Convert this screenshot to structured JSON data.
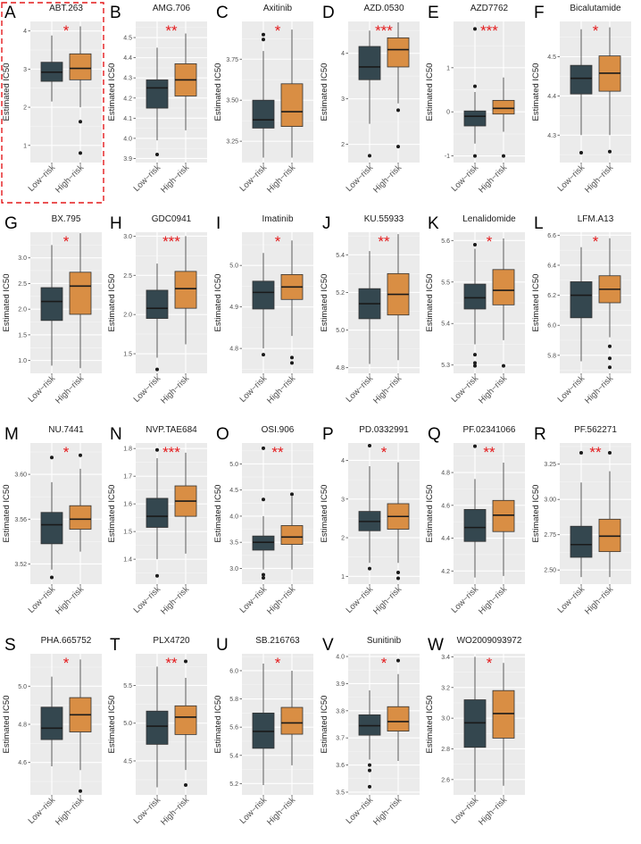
{
  "figure": {
    "x_categories": [
      "Low−risk",
      "High−risk"
    ],
    "ylabel": "Estimated IC50",
    "colors": {
      "low_risk": "#34474f",
      "high_risk": "#d98e44",
      "significance": "#e41a1c",
      "highlight": "#e41a1c"
    }
  },
  "chart_data": [
    {
      "letter": "A",
      "title": "ABT.263",
      "type": "box",
      "ylim": [
        0.55,
        4.25
      ],
      "yticks": [
        1,
        2,
        3,
        4
      ],
      "sig": "*",
      "highlighted": true,
      "series": [
        {
          "name": "Low−risk",
          "q1": 2.68,
          "median": 2.92,
          "q3": 3.18,
          "whisker_low": 2.15,
          "whisker_high": 3.88,
          "outliers": []
        },
        {
          "name": "High−risk",
          "q1": 2.72,
          "median": 3.02,
          "q3": 3.4,
          "whisker_low": 2.0,
          "whisker_high": 4.12,
          "outliers": [
            1.62,
            0.8
          ]
        }
      ]
    },
    {
      "letter": "B",
      "title": "AMG.706",
      "type": "box",
      "ylim": [
        3.88,
        4.58
      ],
      "yticks": [
        3.9,
        4.0,
        4.1,
        4.2,
        4.3,
        4.4,
        4.5
      ],
      "yticklabels": [
        "3.9",
        "4.0",
        "4.1",
        "4.2",
        "4.3",
        "4.4",
        "4.5"
      ],
      "sig": "**",
      "series": [
        {
          "name": "Low−risk",
          "q1": 4.15,
          "median": 4.25,
          "q3": 4.29,
          "whisker_low": 3.99,
          "whisker_high": 4.45,
          "outliers": [
            3.92
          ]
        },
        {
          "name": "High−risk",
          "q1": 4.21,
          "median": 4.29,
          "q3": 4.37,
          "whisker_low": 4.04,
          "whisker_high": 4.52,
          "outliers": []
        }
      ]
    },
    {
      "letter": "C",
      "title": "Axitinib",
      "type": "box",
      "ylim": [
        3.12,
        3.98
      ],
      "yticks": [
        3.25,
        3.5,
        3.75
      ],
      "yticklabels": [
        "3.25",
        "3.50",
        "3.75"
      ],
      "sig": "*",
      "series": [
        {
          "name": "Low−risk",
          "q1": 3.33,
          "median": 3.38,
          "q3": 3.5,
          "whisker_low": 3.15,
          "whisker_high": 3.8,
          "outliers": [
            3.9,
            3.87
          ]
        },
        {
          "name": "High−risk",
          "q1": 3.34,
          "median": 3.43,
          "q3": 3.6,
          "whisker_low": 3.15,
          "whisker_high": 3.93,
          "outliers": []
        }
      ]
    },
    {
      "letter": "D",
      "title": "AZD.0530",
      "type": "box",
      "ylim": [
        1.6,
        4.7
      ],
      "yticks": [
        2,
        3,
        4
      ],
      "sig": "***",
      "series": [
        {
          "name": "Low−risk",
          "q1": 3.42,
          "median": 3.7,
          "q3": 4.15,
          "whisker_low": 2.45,
          "whisker_high": 4.5,
          "outliers": [
            1.75
          ]
        },
        {
          "name": "High−risk",
          "q1": 3.7,
          "median": 4.08,
          "q3": 4.34,
          "whisker_low": 2.9,
          "whisker_high": 4.68,
          "outliers": [
            2.75,
            1.95
          ]
        }
      ]
    },
    {
      "letter": "E",
      "title": "AZD7762",
      "type": "box",
      "ylim": [
        -1.15,
        2.05
      ],
      "yticks": [
        -1,
        0,
        1
      ],
      "sig": "***",
      "series": [
        {
          "name": "Low−risk",
          "q1": -0.32,
          "median": -0.1,
          "q3": 0.02,
          "whisker_low": -0.72,
          "whisker_high": 0.45,
          "outliers": [
            0.58,
            1.88,
            -1.0
          ]
        },
        {
          "name": "High−risk",
          "q1": -0.05,
          "median": 0.08,
          "q3": 0.26,
          "whisker_low": -0.45,
          "whisker_high": 0.78,
          "outliers": [
            -1.0
          ]
        }
      ]
    },
    {
      "letter": "F",
      "title": "Bicalutamide",
      "type": "box",
      "ylim": [
        4.23,
        4.59
      ],
      "yticks": [
        4.3,
        4.4,
        4.5
      ],
      "yticklabels": [
        "4.3",
        "4.4",
        "4.5"
      ],
      "sig": "*",
      "series": [
        {
          "name": "Low−risk",
          "q1": 4.405,
          "median": 4.445,
          "q3": 4.478,
          "whisker_low": 4.3,
          "whisker_high": 4.57,
          "outliers": [
            4.255
          ]
        },
        {
          "name": "High−risk",
          "q1": 4.412,
          "median": 4.458,
          "q3": 4.502,
          "whisker_low": 4.3,
          "whisker_high": 4.575,
          "outliers": [
            4.258
          ]
        }
      ]
    },
    {
      "letter": "G",
      "title": "BX.795",
      "type": "box",
      "ylim": [
        0.75,
        3.5
      ],
      "yticks": [
        1.0,
        1.5,
        2.0,
        2.5,
        3.0
      ],
      "yticklabels": [
        "1.0",
        "1.5",
        "2.0",
        "2.5",
        "3.0"
      ],
      "sig": "*",
      "series": [
        {
          "name": "Low−risk",
          "q1": 1.78,
          "median": 2.15,
          "q3": 2.42,
          "whisker_low": 0.9,
          "whisker_high": 3.25,
          "outliers": []
        },
        {
          "name": "High−risk",
          "q1": 1.9,
          "median": 2.45,
          "q3": 2.72,
          "whisker_low": 0.85,
          "whisker_high": 3.48,
          "outliers": []
        }
      ]
    },
    {
      "letter": "H",
      "title": "GDC0941",
      "type": "box",
      "ylim": [
        1.25,
        3.05
      ],
      "yticks": [
        1.5,
        2.0,
        2.5,
        3.0
      ],
      "yticklabels": [
        "1.5",
        "2.0",
        "2.5",
        "3.0"
      ],
      "sig": "***",
      "series": [
        {
          "name": "Low−risk",
          "q1": 1.95,
          "median": 2.08,
          "q3": 2.31,
          "whisker_low": 1.45,
          "whisker_high": 2.65,
          "outliers": [
            1.3
          ]
        },
        {
          "name": "High−risk",
          "q1": 2.08,
          "median": 2.33,
          "q3": 2.55,
          "whisker_low": 1.62,
          "whisker_high": 3.0,
          "outliers": []
        }
      ]
    },
    {
      "letter": "I",
      "title": "Imatinib",
      "type": "box",
      "ylim": [
        4.74,
        5.08
      ],
      "yticks": [
        4.8,
        4.9,
        5.0
      ],
      "yticklabels": [
        "4.8",
        "4.9",
        "5.0"
      ],
      "sig": "*",
      "series": [
        {
          "name": "Low−risk",
          "q1": 4.895,
          "median": 4.935,
          "q3": 4.962,
          "whisker_low": 4.8,
          "whisker_high": 5.03,
          "outliers": [
            4.785
          ]
        },
        {
          "name": "High−risk",
          "q1": 4.918,
          "median": 4.948,
          "q3": 4.978,
          "whisker_low": 4.83,
          "whisker_high": 5.06,
          "outliers": [
            4.778,
            4.765
          ]
        }
      ]
    },
    {
      "letter": "J",
      "title": "KU.55933",
      "type": "box",
      "ylim": [
        4.77,
        5.52
      ],
      "yticks": [
        4.8,
        5.0,
        5.2,
        5.4
      ],
      "yticklabels": [
        "4.8",
        "5.0",
        "5.2",
        "5.4"
      ],
      "sig": "**",
      "series": [
        {
          "name": "Low−risk",
          "q1": 5.06,
          "median": 5.14,
          "q3": 5.22,
          "whisker_low": 4.82,
          "whisker_high": 5.42,
          "outliers": []
        },
        {
          "name": "High−risk",
          "q1": 5.08,
          "median": 5.19,
          "q3": 5.3,
          "whisker_low": 4.84,
          "whisker_high": 5.51,
          "outliers": []
        }
      ]
    },
    {
      "letter": "K",
      "title": "Lenalidomide",
      "type": "box",
      "ylim": [
        5.28,
        5.62
      ],
      "yticks": [
        5.3,
        5.4,
        5.5,
        5.6
      ],
      "yticklabels": [
        "5.3",
        "5.4",
        "5.5",
        "5.6"
      ],
      "sig": "*",
      "series": [
        {
          "name": "Low−risk",
          "q1": 5.435,
          "median": 5.462,
          "q3": 5.495,
          "whisker_low": 5.35,
          "whisker_high": 5.58,
          "outliers": [
            5.59,
            5.325,
            5.305,
            5.298
          ]
        },
        {
          "name": "High−risk",
          "q1": 5.445,
          "median": 5.48,
          "q3": 5.53,
          "whisker_low": 5.36,
          "whisker_high": 5.605,
          "outliers": [
            5.298
          ]
        }
      ]
    },
    {
      "letter": "L",
      "title": "LFM.A13",
      "type": "box",
      "ylim": [
        5.68,
        6.62
      ],
      "yticks": [
        5.8,
        6.0,
        6.2,
        6.4,
        6.6
      ],
      "yticklabels": [
        "5.8",
        "6.0",
        "6.2",
        "6.4",
        "6.6"
      ],
      "sig": "*",
      "series": [
        {
          "name": "Low−risk",
          "q1": 6.05,
          "median": 6.2,
          "q3": 6.29,
          "whisker_low": 5.76,
          "whisker_high": 6.52,
          "outliers": []
        },
        {
          "name": "High−risk",
          "q1": 6.15,
          "median": 6.24,
          "q3": 6.33,
          "whisker_low": 5.92,
          "whisker_high": 6.58,
          "outliers": [
            5.86,
            5.78,
            5.72
          ]
        }
      ]
    },
    {
      "letter": "M",
      "title": "NU.7441",
      "type": "box",
      "ylim": [
        3.502,
        3.628
      ],
      "yticks": [
        3.52,
        3.56,
        3.6
      ],
      "yticklabels": [
        "3.52",
        "3.56",
        "3.60"
      ],
      "sig": "*",
      "series": [
        {
          "name": "Low−risk",
          "q1": 3.538,
          "median": 3.555,
          "q3": 3.566,
          "whisker_low": 3.515,
          "whisker_high": 3.593,
          "outliers": [
            3.508,
            3.615
          ]
        },
        {
          "name": "High−risk",
          "q1": 3.551,
          "median": 3.56,
          "q3": 3.572,
          "whisker_low": 3.531,
          "whisker_high": 3.605,
          "outliers": [
            3.617
          ]
        }
      ]
    },
    {
      "letter": "N",
      "title": "NVP.TAE684",
      "type": "box",
      "ylim": [
        1.31,
        1.82
      ],
      "yticks": [
        1.4,
        1.5,
        1.6,
        1.7,
        1.8
      ],
      "yticklabels": [
        "1.4",
        "1.5",
        "1.6",
        "1.7",
        "1.8"
      ],
      "sig": "***",
      "series": [
        {
          "name": "Low−risk",
          "q1": 1.515,
          "median": 1.555,
          "q3": 1.62,
          "whisker_low": 1.4,
          "whisker_high": 1.765,
          "outliers": [
            1.34,
            1.795
          ]
        },
        {
          "name": "High−risk",
          "q1": 1.555,
          "median": 1.61,
          "q3": 1.665,
          "whisker_low": 1.42,
          "whisker_high": 1.785,
          "outliers": []
        }
      ]
    },
    {
      "letter": "O",
      "title": "OSI.906",
      "type": "box",
      "ylim": [
        2.7,
        5.4
      ],
      "yticks": [
        3.0,
        3.5,
        4.0,
        4.5,
        5.0
      ],
      "yticklabels": [
        "3.0",
        "3.5",
        "4.0",
        "4.5",
        "5.0"
      ],
      "sig": "**",
      "series": [
        {
          "name": "Low−risk",
          "q1": 3.35,
          "median": 3.5,
          "q3": 3.62,
          "whisker_low": 2.98,
          "whisker_high": 4.0,
          "outliers": [
            4.32,
            5.3,
            2.88,
            2.82
          ]
        },
        {
          "name": "High−risk",
          "q1": 3.46,
          "median": 3.6,
          "q3": 3.82,
          "whisker_low": 2.98,
          "whisker_high": 4.38,
          "outliers": [
            4.42
          ]
        }
      ]
    },
    {
      "letter": "P",
      "title": "PD.0332991",
      "type": "box",
      "ylim": [
        0.8,
        4.45
      ],
      "yticks": [
        1,
        2,
        3,
        4
      ],
      "sig": "*",
      "series": [
        {
          "name": "Low−risk",
          "q1": 2.18,
          "median": 2.42,
          "q3": 2.68,
          "whisker_low": 1.35,
          "whisker_high": 3.85,
          "outliers": [
            1.2,
            4.38
          ]
        },
        {
          "name": "High−risk",
          "q1": 2.22,
          "median": 2.55,
          "q3": 2.88,
          "whisker_low": 1.35,
          "whisker_high": 3.95,
          "outliers": [
            1.1,
            0.95
          ]
        }
      ]
    },
    {
      "letter": "Q",
      "title": "PF.02341066",
      "type": "box",
      "ylim": [
        4.12,
        4.98
      ],
      "yticks": [
        4.2,
        4.4,
        4.6,
        4.8
      ],
      "yticklabels": [
        "4.2",
        "4.4",
        "4.6",
        "4.8"
      ],
      "sig": "**",
      "series": [
        {
          "name": "Low−risk",
          "q1": 4.38,
          "median": 4.465,
          "q3": 4.575,
          "whisker_low": 4.16,
          "whisker_high": 4.76,
          "outliers": [
            4.96
          ]
        },
        {
          "name": "High−risk",
          "q1": 4.44,
          "median": 4.54,
          "q3": 4.63,
          "whisker_low": 4.17,
          "whisker_high": 4.86,
          "outliers": []
        }
      ]
    },
    {
      "letter": "R",
      "title": "PF.562271",
      "type": "box",
      "ylim": [
        2.4,
        3.4
      ],
      "yticks": [
        2.5,
        2.75,
        3.0,
        3.25
      ],
      "yticklabels": [
        "2.50",
        "2.75",
        "3.00",
        "3.25"
      ],
      "sig": "**",
      "series": [
        {
          "name": "Low−risk",
          "q1": 2.59,
          "median": 2.68,
          "q3": 2.81,
          "whisker_low": 2.45,
          "whisker_high": 3.12,
          "outliers": [
            3.33
          ]
        },
        {
          "name": "High−risk",
          "q1": 2.63,
          "median": 2.74,
          "q3": 2.86,
          "whisker_low": 2.45,
          "whisker_high": 3.2,
          "outliers": [
            3.33
          ]
        }
      ]
    },
    {
      "letter": "S",
      "title": "PHA.665752",
      "type": "box",
      "ylim": [
        4.43,
        5.17
      ],
      "yticks": [
        4.6,
        4.8,
        5.0
      ],
      "yticklabels": [
        "4.6",
        "4.8",
        "5.0"
      ],
      "sig": "*",
      "series": [
        {
          "name": "Low−risk",
          "q1": 4.72,
          "median": 4.78,
          "q3": 4.89,
          "whisker_low": 4.58,
          "whisker_high": 5.05,
          "outliers": []
        },
        {
          "name": "High−risk",
          "q1": 4.76,
          "median": 4.85,
          "q3": 4.94,
          "whisker_low": 4.56,
          "whisker_high": 5.14,
          "outliers": [
            4.45
          ]
        }
      ]
    },
    {
      "letter": "T",
      "title": "PLX4720",
      "type": "box",
      "ylim": [
        4.05,
        5.92
      ],
      "yticks": [
        4.5,
        5.0,
        5.5
      ],
      "yticklabels": [
        "4.5",
        "5.0",
        "5.5"
      ],
      "sig": "**",
      "series": [
        {
          "name": "Low−risk",
          "q1": 4.72,
          "median": 4.96,
          "q3": 5.16,
          "whisker_low": 4.15,
          "whisker_high": 5.75,
          "outliers": []
        },
        {
          "name": "High−risk",
          "q1": 4.85,
          "median": 5.08,
          "q3": 5.23,
          "whisker_low": 4.38,
          "whisker_high": 5.6,
          "outliers": [
            5.82,
            4.18
          ]
        }
      ]
    },
    {
      "letter": "U",
      "title": "SB.216763",
      "type": "box",
      "ylim": [
        5.12,
        6.12
      ],
      "yticks": [
        5.2,
        5.4,
        5.6,
        5.8,
        6.0
      ],
      "yticklabels": [
        "5.2",
        "5.4",
        "5.6",
        "5.8",
        "6.0"
      ],
      "sig": "*",
      "series": [
        {
          "name": "Low−risk",
          "q1": 5.45,
          "median": 5.57,
          "q3": 5.7,
          "whisker_low": 5.19,
          "whisker_high": 6.05,
          "outliers": []
        },
        {
          "name": "High−risk",
          "q1": 5.55,
          "median": 5.63,
          "q3": 5.74,
          "whisker_low": 5.33,
          "whisker_high": 6.0,
          "outliers": []
        }
      ]
    },
    {
      "letter": "V",
      "title": "Sunitinib",
      "type": "box",
      "ylim": [
        3.49,
        4.01
      ],
      "yticks": [
        3.5,
        3.6,
        3.7,
        3.8,
        3.9,
        4.0
      ],
      "yticklabels": [
        "3.5",
        "3.6",
        "3.7",
        "3.8",
        "3.9",
        "4.0"
      ],
      "sig": "*",
      "series": [
        {
          "name": "Low−risk",
          "q1": 3.71,
          "median": 3.745,
          "q3": 3.785,
          "whisker_low": 3.62,
          "whisker_high": 3.875,
          "outliers": [
            3.6,
            3.58,
            3.52
          ]
        },
        {
          "name": "High−risk",
          "q1": 3.725,
          "median": 3.76,
          "q3": 3.815,
          "whisker_low": 3.615,
          "whisker_high": 3.935,
          "outliers": [
            3.985
          ]
        }
      ]
    },
    {
      "letter": "W",
      "title": "WO2009093972",
      "type": "box",
      "ylim": [
        2.5,
        3.42
      ],
      "yticks": [
        2.6,
        2.8,
        3.0,
        3.2,
        3.4
      ],
      "yticklabels": [
        "2.6",
        "2.8",
        "3.0",
        "3.2",
        "3.4"
      ],
      "sig": "*",
      "series": [
        {
          "name": "Low−risk",
          "q1": 2.81,
          "median": 2.97,
          "q3": 3.12,
          "whisker_low": 2.52,
          "whisker_high": 3.4,
          "outliers": []
        },
        {
          "name": "High−risk",
          "q1": 2.87,
          "median": 3.03,
          "q3": 3.18,
          "whisker_low": 2.56,
          "whisker_high": 3.36,
          "outliers": []
        }
      ]
    }
  ]
}
